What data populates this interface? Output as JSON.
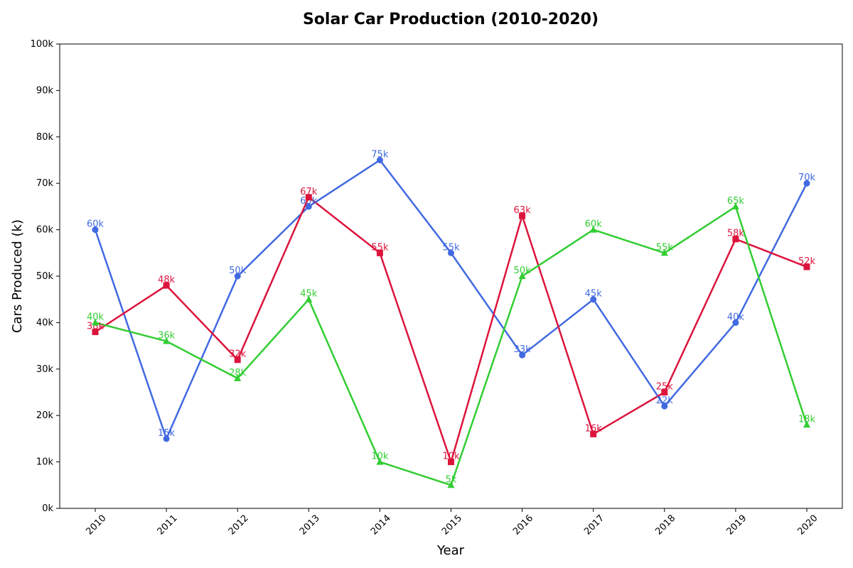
{
  "chart_data": {
    "type": "line",
    "title": "Solar Car Production (2010-2020)",
    "xlabel": "Year",
    "ylabel": "Cars Produced (k)",
    "x": [
      "2010",
      "2011",
      "2012",
      "2013",
      "2014",
      "2015",
      "2016",
      "2017",
      "2018",
      "2019",
      "2020"
    ],
    "ylim": [
      0,
      100
    ],
    "yticks": [
      0,
      10,
      20,
      30,
      40,
      50,
      60,
      70,
      80,
      90,
      100
    ],
    "ytick_labels": [
      "0k",
      "10k",
      "20k",
      "30k",
      "40k",
      "50k",
      "60k",
      "70k",
      "80k",
      "90k",
      "100k"
    ],
    "grid": false,
    "legend": "none",
    "series": [
      {
        "color": "#4169E1",
        "marker": "circle",
        "values": [
          60,
          15,
          50,
          65,
          75,
          55,
          33,
          45,
          22,
          40,
          70
        ],
        "labels": [
          "60k",
          "15k",
          "50k",
          "65k",
          "75k",
          "55k",
          "33k",
          "45k",
          "22k",
          "40k",
          "70k"
        ]
      },
      {
        "color": "#DC143C",
        "marker": "square",
        "values": [
          38,
          48,
          32,
          67,
          55,
          10,
          63,
          16,
          25,
          58,
          52
        ],
        "labels": [
          "38k",
          "48k",
          "32k",
          "67k",
          "55k",
          "10k",
          "63k",
          "16k",
          "25k",
          "58k",
          "52k"
        ]
      },
      {
        "color": "#32CD32",
        "marker": "triangle",
        "values": [
          40,
          36,
          28,
          45,
          10,
          5,
          50,
          60,
          55,
          65,
          18
        ],
        "labels": [
          "40k",
          "36k",
          "28k",
          "45k",
          "10k",
          "5k",
          "50k",
          "60k",
          "55k",
          "65k",
          "18k"
        ]
      }
    ]
  }
}
